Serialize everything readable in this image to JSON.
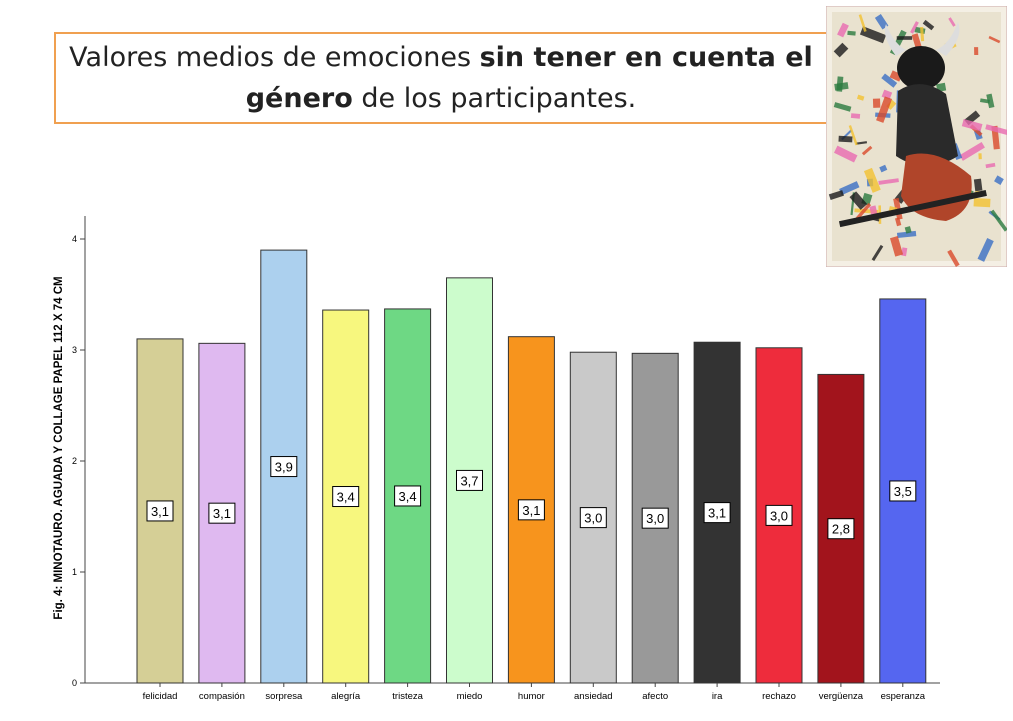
{
  "title": {
    "part1": "Valores medios de emociones ",
    "bold1": "sin tener en cuenta el",
    "bold2": "género",
    "part2": " de los participantes."
  },
  "artwork": {
    "name": "Minotauro artwork",
    "colors": [
      "#2b7a3f",
      "#d94a2a",
      "#f2c230",
      "#3a6fc4",
      "#1a1a1a",
      "#e86ab0"
    ]
  },
  "chart_data": {
    "type": "bar",
    "ylabel": "Fig. 4: MINOTAURO. AGUADA Y COLLAGE PAPEL 112 X 74 CM",
    "xlabel": "",
    "ylim": [
      0,
      4
    ],
    "yticks": [
      "0",
      "1",
      "2",
      "3",
      "4"
    ],
    "categories": [
      "felicidad",
      "compasión",
      "sorpresa",
      "alegría",
      "tristeza",
      "miedo",
      "humor",
      "ansiedad",
      "afecto",
      "ira",
      "rechazo",
      "vergüenza",
      "esperanza"
    ],
    "values": [
      3.1,
      3.06,
      3.9,
      3.36,
      3.37,
      3.65,
      3.12,
      2.98,
      2.97,
      3.07,
      3.02,
      2.78,
      3.46
    ],
    "labels": [
      "3,1",
      "3,1",
      "3,9",
      "3,4",
      "3,4",
      "3,7",
      "3,1",
      "3,0",
      "3,0",
      "3,1",
      "3,0",
      "2,8",
      "3,5"
    ],
    "colors": [
      "#d5cf96",
      "#dfb9f0",
      "#acd0ee",
      "#f7f77e",
      "#6ed884",
      "#ccfccc",
      "#f7941d",
      "#c9c9c9",
      "#999999",
      "#333333",
      "#ee2c3c",
      "#a2141c",
      "#5566f0"
    ]
  }
}
